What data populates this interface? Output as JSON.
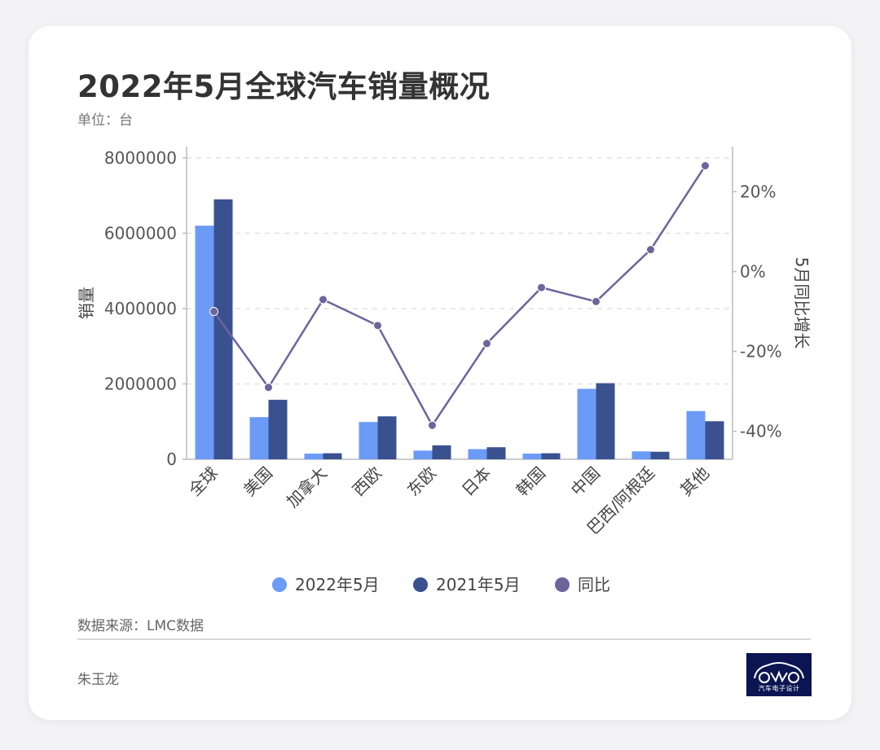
{
  "header": {
    "title": "2022年5月全球汽车销量概况",
    "unit": "单位：台"
  },
  "footer": {
    "source": "数据来源：LMC数据",
    "author": "朱玉龙",
    "logo_text": "汽车电子设计"
  },
  "colors": {
    "series_2022": "#6b9bf7",
    "series_2021": "#3a5190",
    "yoy_line": "#6e649c",
    "logo_bg": "#0b1552"
  },
  "chart_data": {
    "type": "bar",
    "categories": [
      "全球",
      "美国",
      "加拿大",
      "西欧",
      "东欧",
      "日本",
      "韩国",
      "中国",
      "巴西/阿根廷",
      "其他"
    ],
    "series": [
      {
        "name": "2022年5月",
        "type": "bar",
        "axis": "left",
        "color": "#6b9bf7",
        "values": [
          6200000,
          1120000,
          150000,
          990000,
          230000,
          270000,
          150000,
          1870000,
          210000,
          1280000
        ]
      },
      {
        "name": "2021年5月",
        "type": "bar",
        "axis": "left",
        "color": "#3a5190",
        "values": [
          6900000,
          1580000,
          160000,
          1140000,
          370000,
          320000,
          160000,
          2020000,
          200000,
          1010000
        ]
      },
      {
        "name": "同比",
        "type": "line",
        "axis": "right",
        "color": "#6e649c",
        "values": [
          -10,
          -29,
          -7,
          -13.5,
          -38.5,
          -18,
          -4,
          -7.5,
          5.5,
          26.5
        ]
      }
    ],
    "ylabel": "销量",
    "y2label": "5月同比增长",
    "ylim": [
      0,
      8300000
    ],
    "yticks": [
      0,
      2000000,
      4000000,
      6000000,
      8000000
    ],
    "ytick_labels": [
      "0",
      "2000000",
      "4000000",
      "6000000",
      "8000000"
    ],
    "y2lim": [
      -47,
      31.3
    ],
    "y2ticks": [
      -40,
      -20,
      0,
      20
    ],
    "y2tick_labels": [
      "-40%",
      "-20%",
      "0%",
      "20%"
    ],
    "grid": true,
    "legend": "bottom"
  }
}
